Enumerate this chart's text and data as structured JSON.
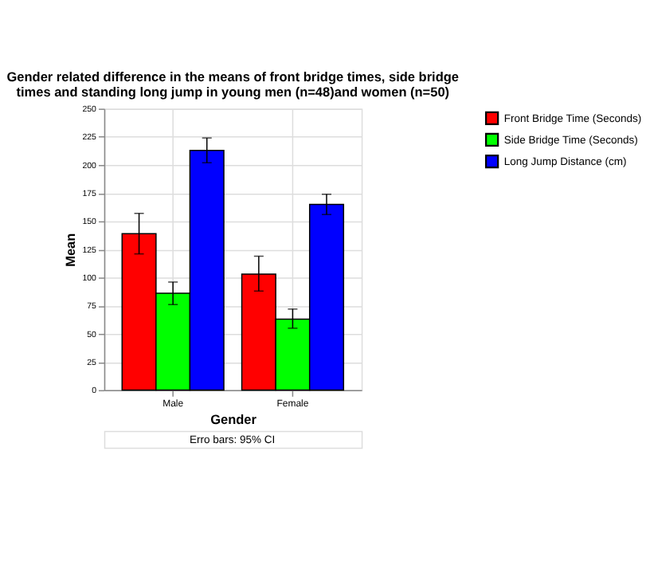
{
  "chart_data": {
    "type": "bar",
    "title": "Gender related difference in the means of front bridge times, side bridge times and standing long jump in young men (n=48)and women (n=50)",
    "xlabel": "Gender",
    "ylabel": "Mean",
    "categories": [
      "Male",
      "Female"
    ],
    "series": [
      {
        "name": "Front Bridge Time (Seconds)",
        "color": "#ff0000",
        "values": [
          139,
          103
        ],
        "errors": [
          [
            121,
            157
          ],
          [
            88,
            119
          ]
        ]
      },
      {
        "name": "Side Bridge Time (Seconds)",
        "color": "#00ff00",
        "values": [
          86,
          63
        ],
        "errors": [
          [
            76,
            96
          ],
          [
            55,
            72
          ]
        ]
      },
      {
        "name": "Long Jump Distance (cm)",
        "color": "#0000ff",
        "values": [
          213,
          165
        ],
        "errors": [
          [
            202,
            224
          ],
          [
            156,
            174
          ]
        ]
      }
    ],
    "ylim": [
      0,
      250
    ],
    "yticks": [
      0,
      25,
      50,
      75,
      100,
      125,
      150,
      175,
      200,
      225,
      250
    ],
    "grid": true,
    "legend": "top right",
    "annotations": [
      "Erro bars: 95% CI"
    ]
  }
}
